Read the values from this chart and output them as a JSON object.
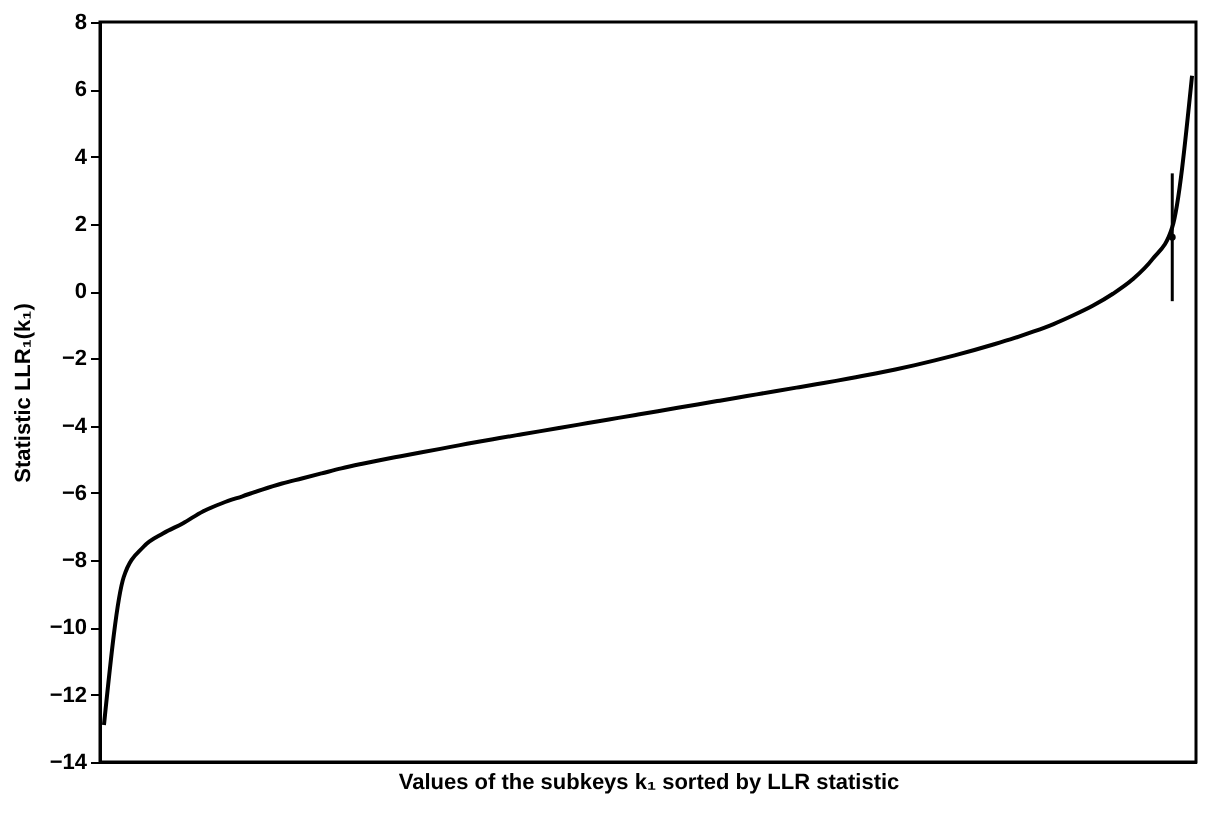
{
  "chart_data": {
    "type": "line",
    "xlabel": "Values of the subkeys k₁ sorted by LLR statistic",
    "ylabel": "Statistic LLR₁(k₁)",
    "categories": [
      null,
      null,
      null,
      null,
      null,
      null,
      null,
      null,
      null,
      null,
      null,
      null,
      null,
      null,
      null,
      null,
      null,
      null,
      null,
      null,
      null,
      null,
      null,
      null,
      null,
      null,
      null,
      null,
      null,
      null,
      null,
      null,
      null,
      null,
      null,
      null,
      null,
      null,
      null,
      null,
      null,
      null,
      null,
      null,
      null,
      null,
      null,
      null,
      null,
      null,
      null,
      null,
      null,
      null,
      null,
      null
    ],
    "series": [
      {
        "color": "#000000",
        "values": [
          -12.9,
          -8.5,
          -7.6,
          -7.2,
          -6.9,
          -6.55,
          -6.3,
          -6.1,
          -5.9,
          -5.72,
          -5.57,
          -5.42,
          -5.27,
          -5.14,
          -5.02,
          -4.91,
          -4.8,
          -4.69,
          -4.58,
          -4.47,
          -4.37,
          -4.27,
          -4.17,
          -4.07,
          -3.97,
          -3.87,
          -3.77,
          -3.67,
          -3.57,
          -3.47,
          -3.37,
          -3.27,
          -3.17,
          -3.07,
          -2.97,
          -2.87,
          -2.77,
          -2.67,
          -2.56,
          -2.45,
          -2.33,
          -2.2,
          -2.06,
          -1.91,
          -1.75,
          -1.58,
          -1.4,
          -1.2,
          -0.98,
          -0.72,
          -0.43,
          -0.08,
          0.35,
          0.95,
          1.9,
          6.4
        ]
      },
      {
        "color": "#000000",
        "values": [
          null,
          null,
          null,
          null,
          null,
          null,
          null,
          null,
          null,
          null,
          null,
          null,
          null,
          null,
          null,
          null,
          null,
          null,
          null,
          null,
          null,
          null,
          null,
          null,
          null,
          null,
          null,
          null,
          null,
          null,
          null,
          null,
          null,
          null,
          null,
          null,
          null,
          null,
          null,
          null,
          null,
          null,
          null,
          null,
          null,
          null,
          null,
          null,
          null,
          null,
          null,
          null,
          null,
          null,
          1.6,
          null
        ],
        "errors": [
          null,
          null,
          null,
          null,
          null,
          null,
          null,
          null,
          null,
          null,
          null,
          null,
          null,
          null,
          null,
          null,
          null,
          null,
          null,
          null,
          null,
          null,
          null,
          null,
          null,
          null,
          null,
          null,
          null,
          null,
          null,
          null,
          null,
          null,
          null,
          null,
          null,
          null,
          null,
          null,
          null,
          null,
          null,
          null,
          null,
          null,
          null,
          null,
          null,
          null,
          null,
          null,
          null,
          null,
          [
            -0.3,
            3.5
          ],
          null
        ]
      }
    ],
    "ylim": [
      -14,
      8
    ],
    "yticks": [
      -14,
      -12,
      -10,
      -8,
      -6,
      -4,
      -2,
      0,
      2,
      4,
      6,
      8
    ],
    "tick_labels": "y",
    "grid": false,
    "marker": "none",
    "line_style": "solid"
  }
}
